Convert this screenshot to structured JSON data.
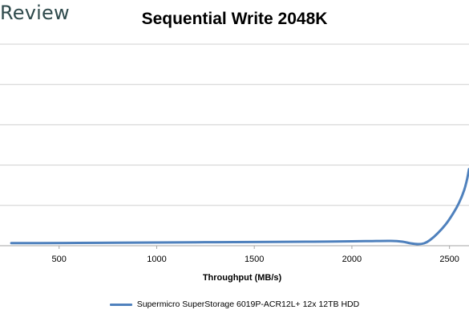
{
  "brand": "Review",
  "chart_data": {
    "type": "line",
    "title": "Sequential Write 2048K",
    "xlabel": "Throughput (MB/s)",
    "ylabel": "",
    "xlim": [
      230,
      2600
    ],
    "ylim": [
      0,
      1000
    ],
    "x_ticks": [
      500,
      1000,
      1500,
      2000,
      2500
    ],
    "y_gridlines": 6,
    "grid": true,
    "legend": "bottom",
    "series": [
      {
        "name": "Supermicro SuperStorage 6019P-ACR12L+ 12x 12TB HDD",
        "color": "#4f81bd",
        "x": [
          255,
          400,
          600,
          800,
          1000,
          1200,
          1400,
          1600,
          1800,
          2000,
          2100,
          2200,
          2260,
          2300,
          2340,
          2370,
          2400,
          2440,
          2480,
          2520,
          2550,
          2575,
          2590,
          2600
        ],
        "y": [
          13,
          13,
          14,
          15,
          16,
          17,
          18,
          19,
          20,
          22,
          23,
          24,
          20,
          12,
          8,
          12,
          28,
          62,
          105,
          162,
          215,
          275,
          330,
          380
        ]
      }
    ]
  }
}
